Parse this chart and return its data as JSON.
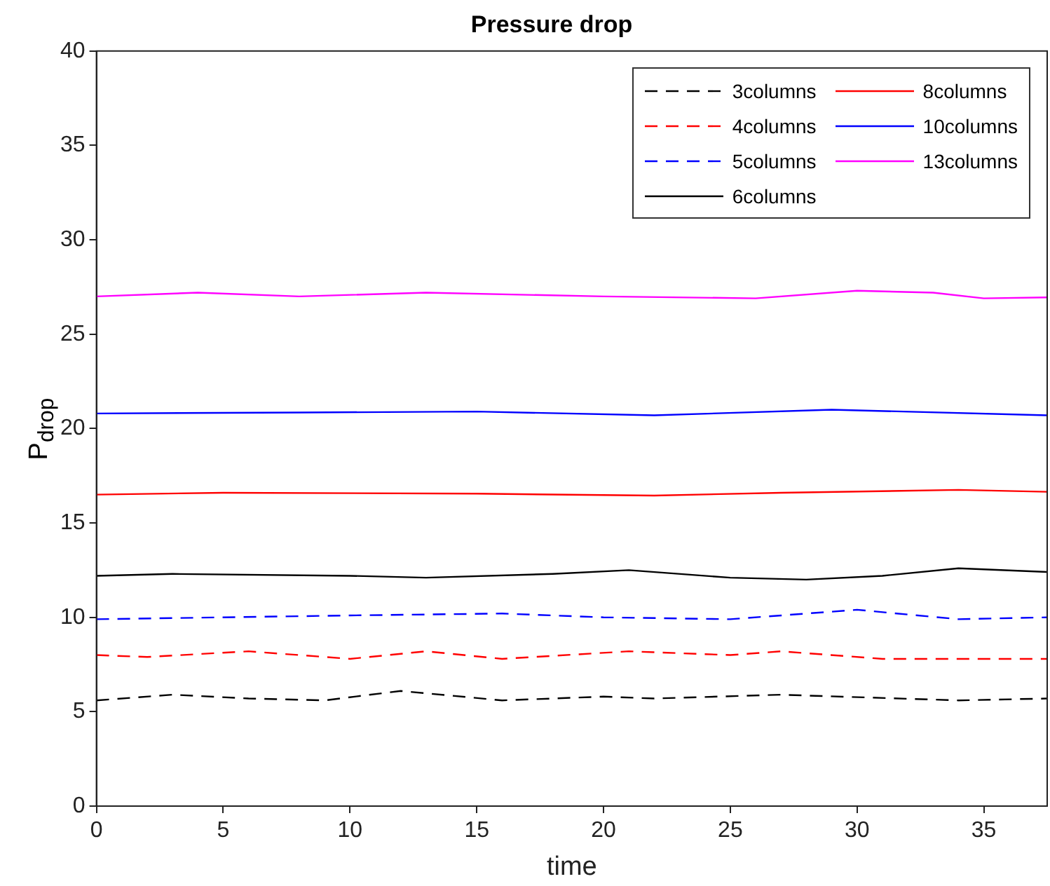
{
  "chart_data": {
    "type": "line",
    "title": "Pressure drop",
    "xlabel": "time",
    "ylabel": "P$_{drop}$",
    "xlim": [
      0,
      37.5
    ],
    "xticks": [
      0,
      5,
      10,
      15,
      20,
      25,
      30,
      35
    ],
    "ylim": [
      0,
      40
    ],
    "yticks": [
      0,
      5,
      10,
      15,
      20,
      25,
      30,
      35,
      40
    ],
    "grid": false,
    "legend": "top right",
    "marker": "none",
    "series": [
      {
        "name": "3columns",
        "color": "#000000",
        "line_style": "dashed",
        "x": [
          0,
          3,
          6,
          9,
          12,
          16,
          20,
          22,
          27,
          34,
          37.5
        ],
        "values": [
          5.6,
          5.9,
          5.7,
          5.6,
          6.1,
          5.6,
          5.8,
          5.7,
          5.9,
          5.6,
          5.7
        ]
      },
      {
        "name": "4columns",
        "color": "#ff0000",
        "line_style": "dashed",
        "x": [
          0,
          2,
          6,
          10,
          13,
          16,
          21,
          25,
          27,
          31,
          37.5
        ],
        "values": [
          8.0,
          7.9,
          8.2,
          7.8,
          8.2,
          7.8,
          8.2,
          8.0,
          8.2,
          7.8,
          7.8
        ]
      },
      {
        "name": "5columns",
        "color": "#0000ff",
        "line_style": "dashed",
        "x": [
          0,
          5,
          10,
          16,
          20,
          25,
          30,
          34,
          37.5
        ],
        "values": [
          9.9,
          10.0,
          10.1,
          10.2,
          10.0,
          9.9,
          10.4,
          9.9,
          10.0
        ]
      },
      {
        "name": "6columns",
        "color": "#000000",
        "line_style": "solid",
        "x": [
          0,
          3,
          10,
          13,
          18,
          21,
          25,
          28,
          31,
          34,
          37.5
        ],
        "values": [
          12.2,
          12.3,
          12.2,
          12.1,
          12.3,
          12.5,
          12.1,
          12.0,
          12.2,
          12.6,
          12.4
        ]
      },
      {
        "name": "8columns",
        "color": "#ff0000",
        "line_style": "solid",
        "x": [
          0,
          5,
          15,
          22,
          27,
          34,
          37.5
        ],
        "values": [
          16.5,
          16.6,
          16.55,
          16.45,
          16.6,
          16.75,
          16.65
        ]
      },
      {
        "name": "10columns",
        "color": "#0000ff",
        "line_style": "solid",
        "x": [
          0,
          8,
          15,
          22,
          29,
          37.5
        ],
        "values": [
          20.8,
          20.85,
          20.9,
          20.7,
          21.0,
          20.7
        ]
      },
      {
        "name": "13columns",
        "color": "#ff00ff",
        "line_style": "solid",
        "x": [
          0,
          4,
          8,
          13,
          20,
          26,
          30,
          33,
          35,
          37.5
        ],
        "values": [
          27.0,
          27.2,
          27.0,
          27.2,
          27.0,
          26.9,
          27.3,
          27.2,
          26.9,
          26.95
        ]
      }
    ]
  }
}
